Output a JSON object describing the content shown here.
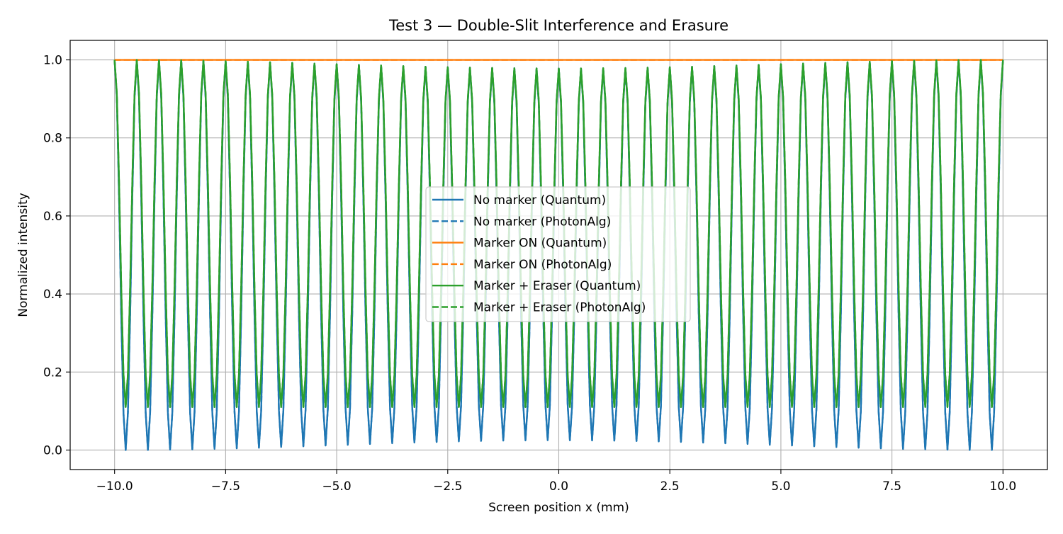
{
  "chart_data": {
    "type": "line",
    "title": "Test 3 — Double-Slit Interference and Erasure",
    "xlabel": "Screen position x (mm)",
    "ylabel": "Normalized intensity",
    "xlim": [
      -11.0,
      11.0
    ],
    "ylim": [
      -0.05,
      1.05
    ],
    "xticks": [
      -10.0,
      -7.5,
      -5.0,
      -2.5,
      0.0,
      2.5,
      5.0,
      7.5,
      10.0
    ],
    "xtick_labels": [
      "−10.0",
      "−7.5",
      "−5.0",
      "−2.5",
      "0.0",
      "2.5",
      "5.0",
      "7.5",
      "10.0"
    ],
    "yticks": [
      0.0,
      0.2,
      0.4,
      0.6,
      0.8,
      1.0
    ],
    "ytick_labels": [
      "0.0",
      "0.2",
      "0.4",
      "0.6",
      "0.8",
      "1.0"
    ],
    "grid": true,
    "legend_position": "center",
    "series_model": {
      "x_start": -10.0,
      "x_end": 10.0,
      "fringe_period_mm": 0.5,
      "samples": 400,
      "envelope_center_drop": 0.022,
      "eraser_visibility_factor": 0.89
    },
    "series": [
      {
        "name": "No marker (Quantum)",
        "color": "#1f77b4",
        "style": "solid",
        "shape": "fringes",
        "min": 0.0,
        "max": 1.0
      },
      {
        "name": "No marker (PhotonAlg)",
        "color": "#1f77b4",
        "style": "dashed",
        "shape": "fringes",
        "min": 0.0,
        "max": 1.0
      },
      {
        "name": "Marker ON (Quantum)",
        "color": "#ff7f0e",
        "style": "solid",
        "shape": "flat",
        "value": 1.0
      },
      {
        "name": "Marker ON (PhotonAlg)",
        "color": "#ff7f0e",
        "style": "dashed",
        "shape": "flat",
        "value": 1.0
      },
      {
        "name": "Marker + Eraser (Quantum)",
        "color": "#2ca02c",
        "style": "solid",
        "shape": "fringes",
        "min": 0.11,
        "max": 1.0
      },
      {
        "name": "Marker + Eraser (PhotonAlg)",
        "color": "#2ca02c",
        "style": "dashed",
        "shape": "fringes",
        "min": 0.11,
        "max": 1.0
      }
    ]
  }
}
